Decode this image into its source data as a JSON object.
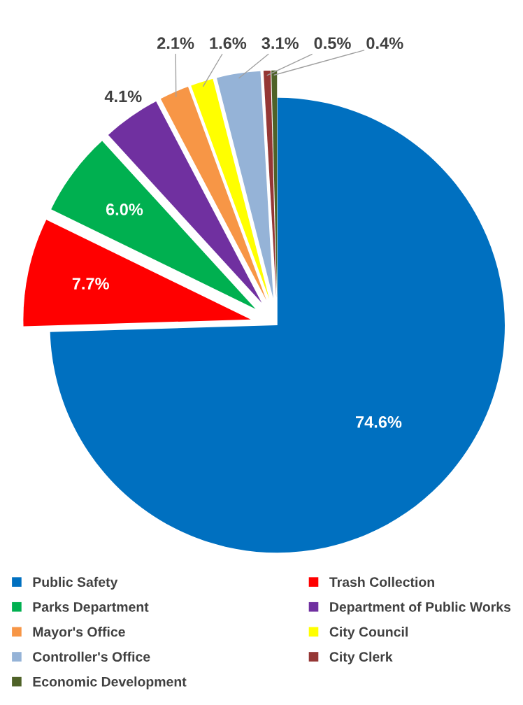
{
  "chart_data": {
    "type": "pie",
    "categories": [
      "Public Safety",
      "Trash Collection",
      "Parks Department",
      "Department of Public Works",
      "Mayor's Office",
      "City Council",
      "Controller's Office",
      "City Clerk",
      "Economic Development"
    ],
    "values": [
      74.6,
      7.7,
      6.0,
      4.1,
      2.1,
      1.6,
      3.1,
      0.5,
      0.4
    ],
    "value_labels": [
      "74.6%",
      "7.7%",
      "6.0%",
      "4.1%",
      "2.1%",
      "1.6%",
      "3.1%",
      "0.5%",
      "0.4%"
    ],
    "colors": [
      "#0070c0",
      "#ff0000",
      "#00b050",
      "#7030a0",
      "#f79646",
      "#ffff00",
      "#95b3d7",
      "#953735",
      "#4f6228"
    ],
    "legend": "bottom"
  }
}
